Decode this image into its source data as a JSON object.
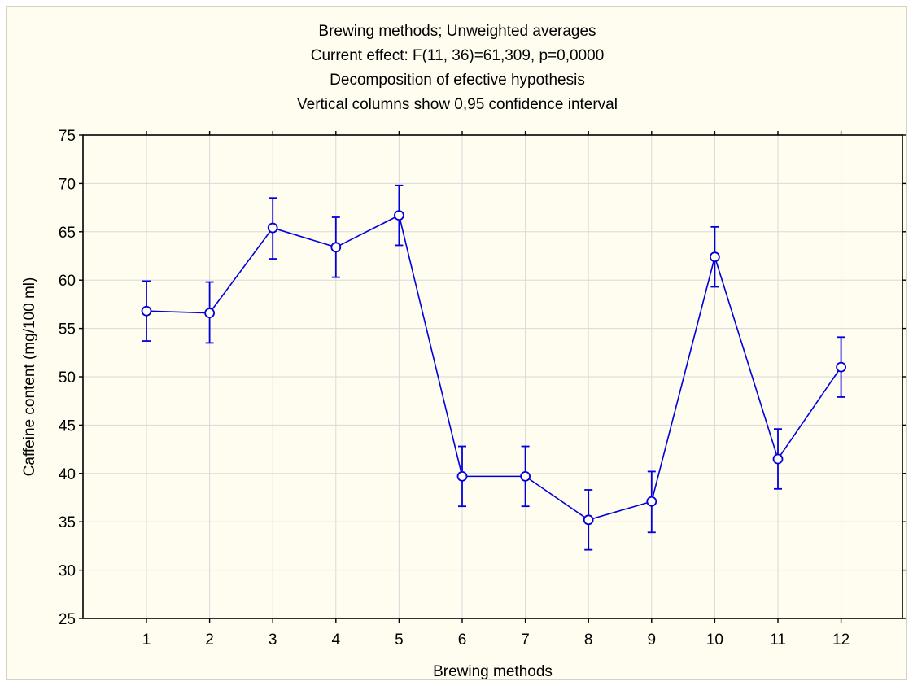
{
  "chart_data": {
    "type": "line",
    "title_lines": [
      "Brewing methods; Unweighted averages",
      "Current effect: F(11, 36)=61,309, p=0,0000",
      "Decomposition of efective hypothesis",
      "Vertical columns show 0,95 confidence interval"
    ],
    "xlabel": "Brewing methods",
    "ylabel": "Caffeine content (mg/100 ml)",
    "categories": [
      "1",
      "2",
      "3",
      "4",
      "5",
      "6",
      "7",
      "8",
      "9",
      "10",
      "11",
      "12"
    ],
    "series": [
      {
        "values": [
          56.8,
          56.6,
          65.4,
          63.4,
          66.7,
          39.7,
          39.7,
          35.2,
          37.1,
          62.4,
          41.5,
          51.0
        ],
        "ci_lower": [
          53.7,
          53.5,
          62.2,
          60.3,
          63.6,
          36.6,
          36.6,
          32.1,
          33.9,
          59.3,
          38.4,
          47.9
        ],
        "ci_upper": [
          59.9,
          59.8,
          68.5,
          66.5,
          69.8,
          42.8,
          42.8,
          38.3,
          40.2,
          65.5,
          44.6,
          54.1
        ]
      }
    ],
    "ylim": [
      25,
      75
    ],
    "yticks": [
      "25",
      "30",
      "35",
      "40",
      "45",
      "50",
      "55",
      "60",
      "65",
      "70",
      "75"
    ],
    "grid": true,
    "colors": {
      "series": "#0000dd",
      "grid": "#d9d9d9",
      "background": "#fffcf0",
      "axes_border": "#000000"
    }
  }
}
